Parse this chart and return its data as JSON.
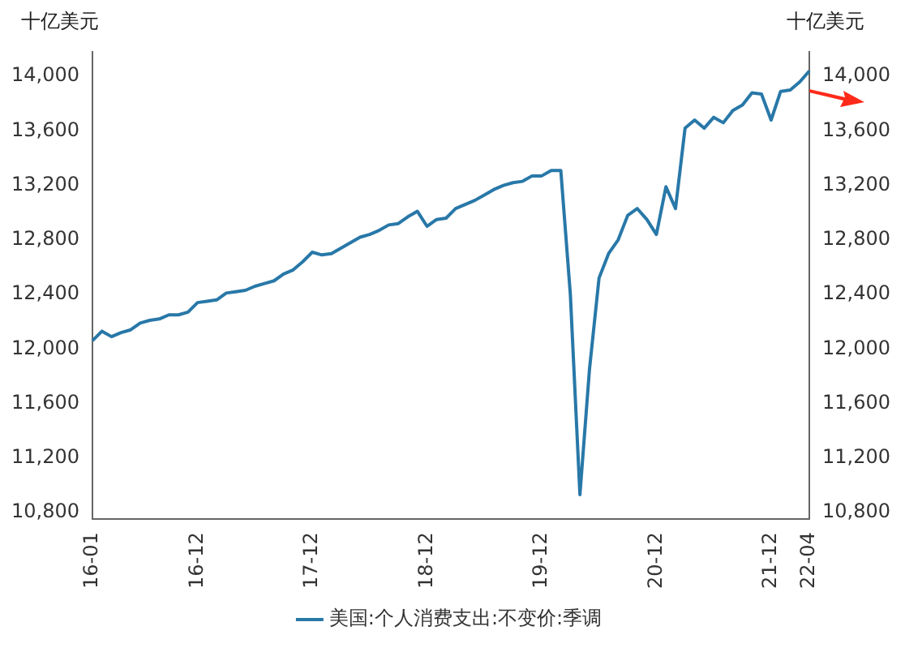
{
  "chart_data": {
    "type": "line",
    "ylabel": "十亿美元",
    "y2label": "十亿美元",
    "categories": [
      "16-01",
      null,
      null,
      null,
      null,
      null,
      null,
      null,
      null,
      null,
      null,
      "16-12",
      null,
      null,
      null,
      null,
      null,
      null,
      null,
      null,
      null,
      null,
      null,
      "17-12",
      null,
      null,
      null,
      null,
      null,
      null,
      null,
      null,
      null,
      null,
      null,
      "18-12",
      null,
      null,
      null,
      null,
      null,
      null,
      null,
      null,
      null,
      null,
      null,
      "19-12",
      null,
      null,
      null,
      null,
      null,
      null,
      null,
      null,
      null,
      null,
      null,
      "20-12",
      null,
      null,
      null,
      null,
      null,
      null,
      null,
      null,
      null,
      null,
      null,
      "21-12",
      null,
      null,
      null,
      "22-04"
    ],
    "series": [
      {
        "name": "美国:个人消费支出:不变价:季调",
        "color": "#2878a8",
        "axis": "y",
        "values": [
          12060,
          12130,
          12090,
          12120,
          12140,
          12190,
          12210,
          12220,
          12250,
          12250,
          12270,
          12340,
          12350,
          12360,
          12410,
          12420,
          12430,
          12460,
          12480,
          12500,
          12550,
          12580,
          12640,
          12710,
          12690,
          12700,
          12740,
          12780,
          12820,
          12840,
          12870,
          12910,
          12920,
          12970,
          13010,
          12900,
          12950,
          12960,
          13030,
          13060,
          13090,
          13130,
          13170,
          13200,
          13220,
          13230,
          13270,
          13270,
          13310,
          13310,
          12400,
          10930,
          11850,
          12520,
          12700,
          12800,
          12980,
          13030,
          12950,
          12840,
          13190,
          13030,
          13620,
          13680,
          13620,
          13700,
          13660,
          13750,
          13790,
          13880,
          13870,
          13680,
          13890,
          13900,
          13960,
          14040
        ]
      }
    ],
    "ylim": [
      10750,
      14180
    ],
    "yticks": [
      {
        "value": 10800,
        "label": "10,800"
      },
      {
        "value": 11200,
        "label": "11,200"
      },
      {
        "value": 11600,
        "label": "11,600"
      },
      {
        "value": 12000,
        "label": "12,000"
      },
      {
        "value": 12400,
        "label": "12,400"
      },
      {
        "value": 12800,
        "label": "12,800"
      },
      {
        "value": 13200,
        "label": "13,200"
      },
      {
        "value": 13600,
        "label": "13,600"
      },
      {
        "value": 14000,
        "label": "14,000"
      }
    ],
    "y2lim": [
      10750,
      14180
    ],
    "y2ticks": [
      {
        "value": 10800,
        "label": "10,800"
      },
      {
        "value": 11200,
        "label": "11,200"
      },
      {
        "value": 11600,
        "label": "11,600"
      },
      {
        "value": 12000,
        "label": "12,000"
      },
      {
        "value": 12400,
        "label": "12,400"
      },
      {
        "value": 12800,
        "label": "12,800"
      },
      {
        "value": 13200,
        "label": "13,200"
      },
      {
        "value": 13600,
        "label": "13,600"
      },
      {
        "value": 14000,
        "label": "14,000"
      }
    ],
    "grid": false,
    "legend": "bottom",
    "marker": "none",
    "line_style": "solid"
  }
}
